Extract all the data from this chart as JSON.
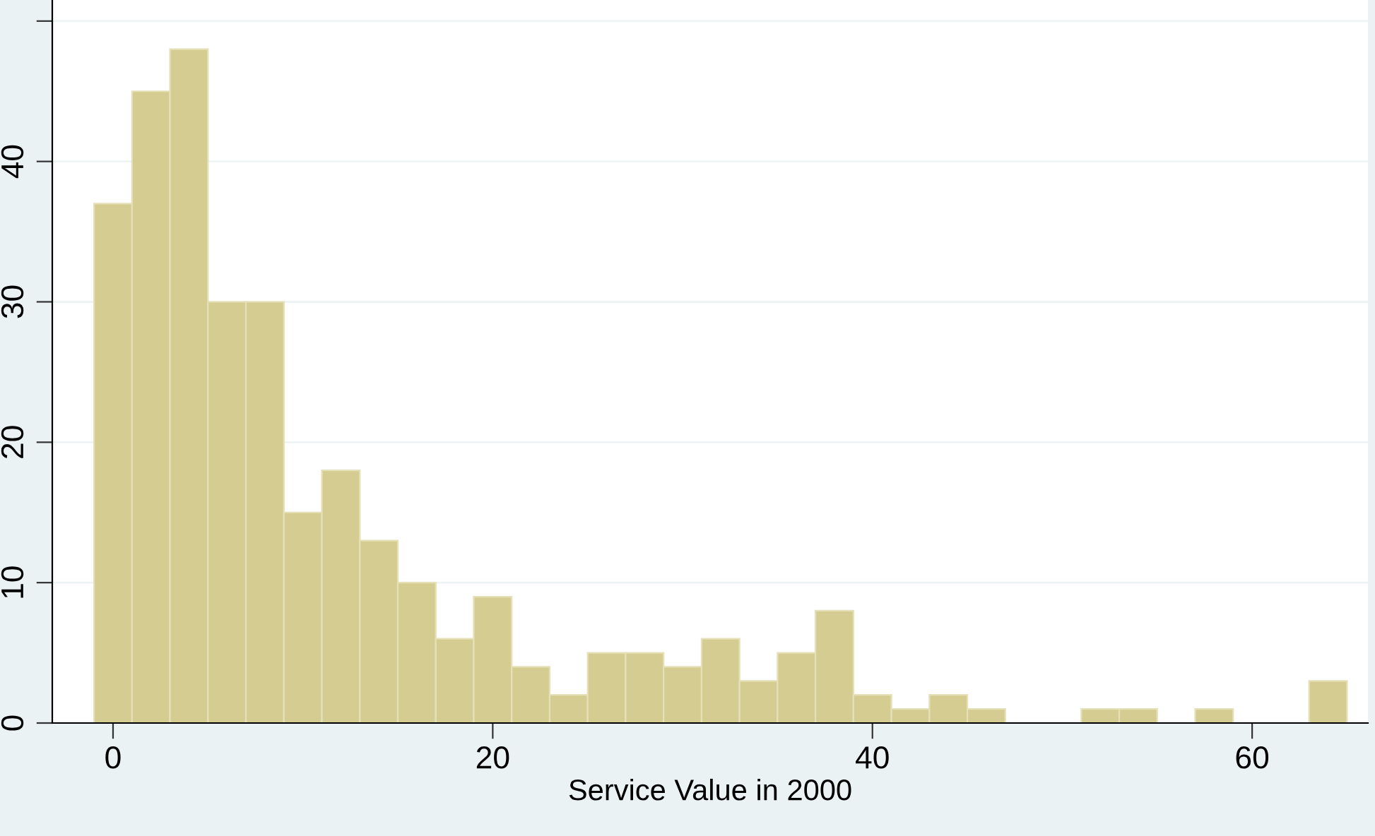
{
  "chart_data": {
    "type": "histogram",
    "xlabel": "Service Value in 2000",
    "bins": [
      -1,
      1,
      3,
      5,
      7,
      9,
      11,
      13,
      15,
      17,
      19,
      21,
      23,
      25,
      27,
      29,
      31,
      33,
      35,
      37,
      39,
      41,
      43,
      45,
      47,
      49,
      51,
      53,
      55,
      57,
      59,
      61,
      63,
      65
    ],
    "values": [
      37,
      45,
      48,
      30,
      30,
      15,
      18,
      13,
      10,
      6,
      9,
      4,
      2,
      5,
      5,
      4,
      6,
      3,
      5,
      8,
      2,
      1,
      2,
      1,
      0,
      0,
      1,
      1,
      0,
      1,
      0,
      0,
      3
    ],
    "color": "#d4cc91",
    "xlim": [
      -3.2,
      66.1
    ],
    "xticks": [
      0,
      20,
      40,
      60
    ],
    "ylim": [
      0,
      51.5
    ],
    "yticks": [
      0,
      10,
      20,
      30,
      40,
      {
        "value": 50,
        "label": null
      }
    ],
    "grid": "y"
  }
}
